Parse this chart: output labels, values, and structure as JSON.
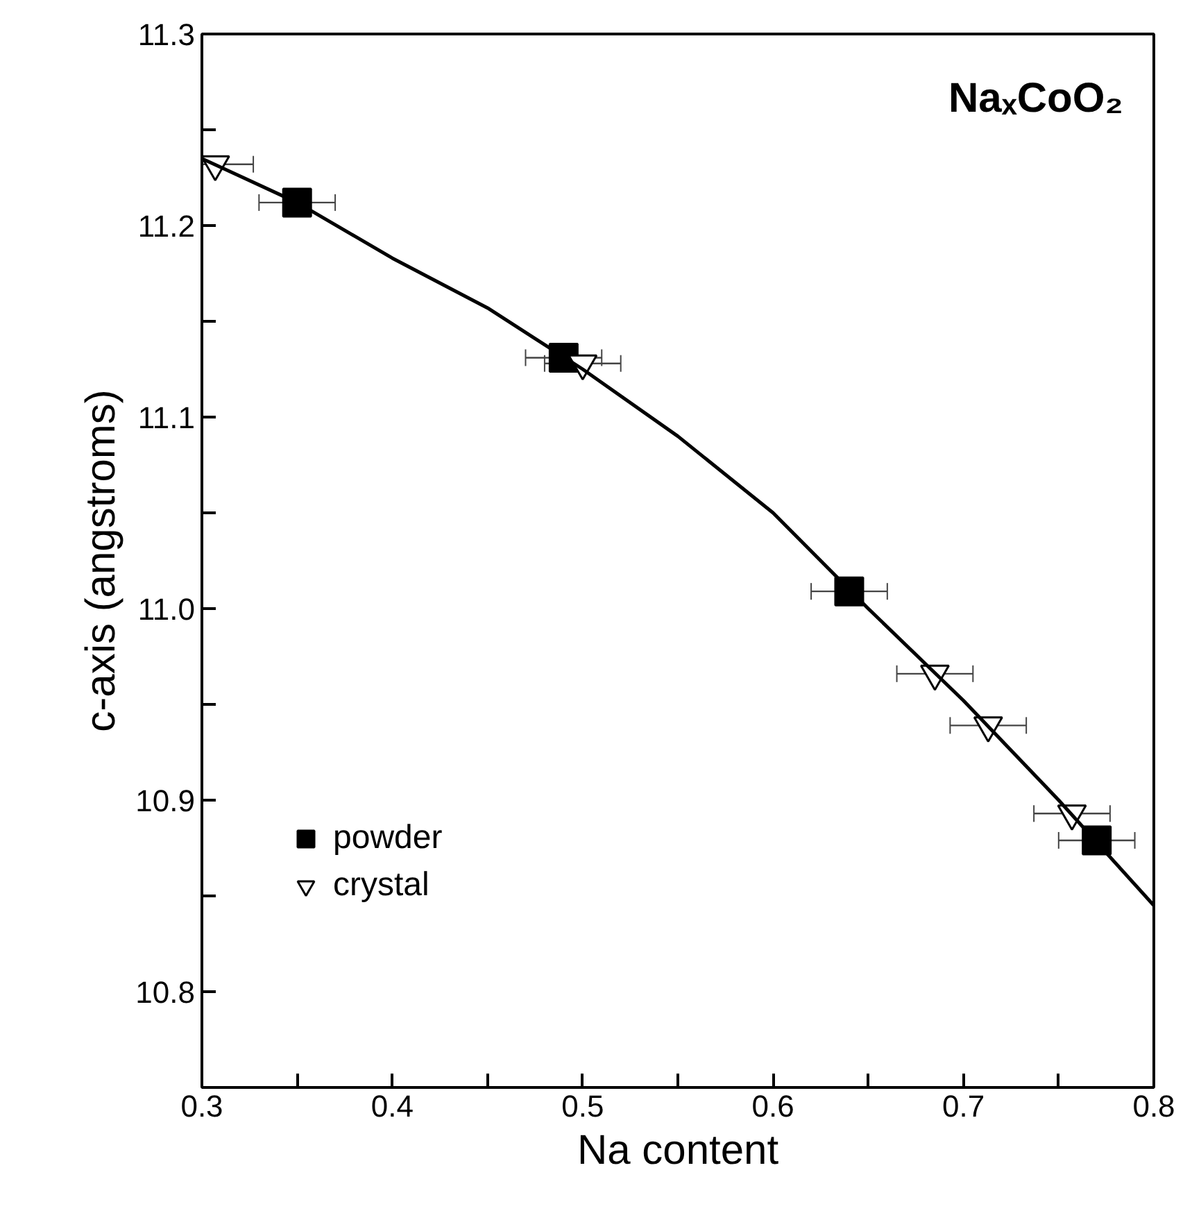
{
  "chart_data": {
    "type": "scatter",
    "xlabel": "Na content",
    "ylabel": "c-axis (angstroms)",
    "annotations": [
      "NaₓCoO₂"
    ],
    "xlim": [
      0.3,
      0.8
    ],
    "ylim": [
      10.75,
      11.3
    ],
    "xticks": [
      0.3,
      {
        "value": 0.35,
        "label": null
      },
      0.4,
      {
        "value": 0.45,
        "label": null
      },
      0.5,
      {
        "value": 0.55,
        "label": null
      },
      0.6,
      {
        "value": 0.65,
        "label": null
      },
      0.7,
      {
        "value": 0.75,
        "label": null
      },
      0.8
    ],
    "yticks": [
      {
        "value": 10.75,
        "label": null
      },
      10.8,
      {
        "value": 10.85,
        "label": null
      },
      10.9,
      {
        "value": 10.95,
        "label": null
      },
      {
        "value": 11.0,
        "label": "11.0"
      },
      {
        "value": 11.05,
        "label": null
      },
      11.1,
      {
        "value": 11.15,
        "label": null
      },
      11.2,
      {
        "value": 11.25,
        "label": null
      },
      11.3
    ],
    "legend": "bottom left",
    "grid": false,
    "series": [
      {
        "name": "powder",
        "marker": "square",
        "color": "#000000",
        "x": [
          0.35,
          0.49,
          0.64,
          0.77
        ],
        "values": [
          11.212,
          11.131,
          11.009,
          10.879
        ],
        "xerrors": [
          0.02,
          0.02,
          0.02,
          0.02
        ]
      },
      {
        "name": "crystal",
        "marker": "triangle",
        "color": "#ffffff",
        "x": [
          0.307,
          0.5,
          0.685,
          0.713,
          0.757
        ],
        "values": [
          11.232,
          11.128,
          10.966,
          10.939,
          10.893
        ],
        "xerrors": [
          0.02,
          0.02,
          0.02,
          0.02,
          0.02
        ]
      },
      {
        "type": "line",
        "color": "#000000",
        "line_style": "solid",
        "x": [
          0.3,
          0.35,
          0.4,
          0.45,
          0.5,
          0.55,
          0.6,
          0.65,
          0.7,
          0.75,
          0.8
        ],
        "values": [
          11.235,
          11.212,
          11.183,
          11.157,
          11.125,
          11.09,
          11.05,
          11.0,
          10.952,
          10.9,
          10.845
        ]
      }
    ]
  }
}
